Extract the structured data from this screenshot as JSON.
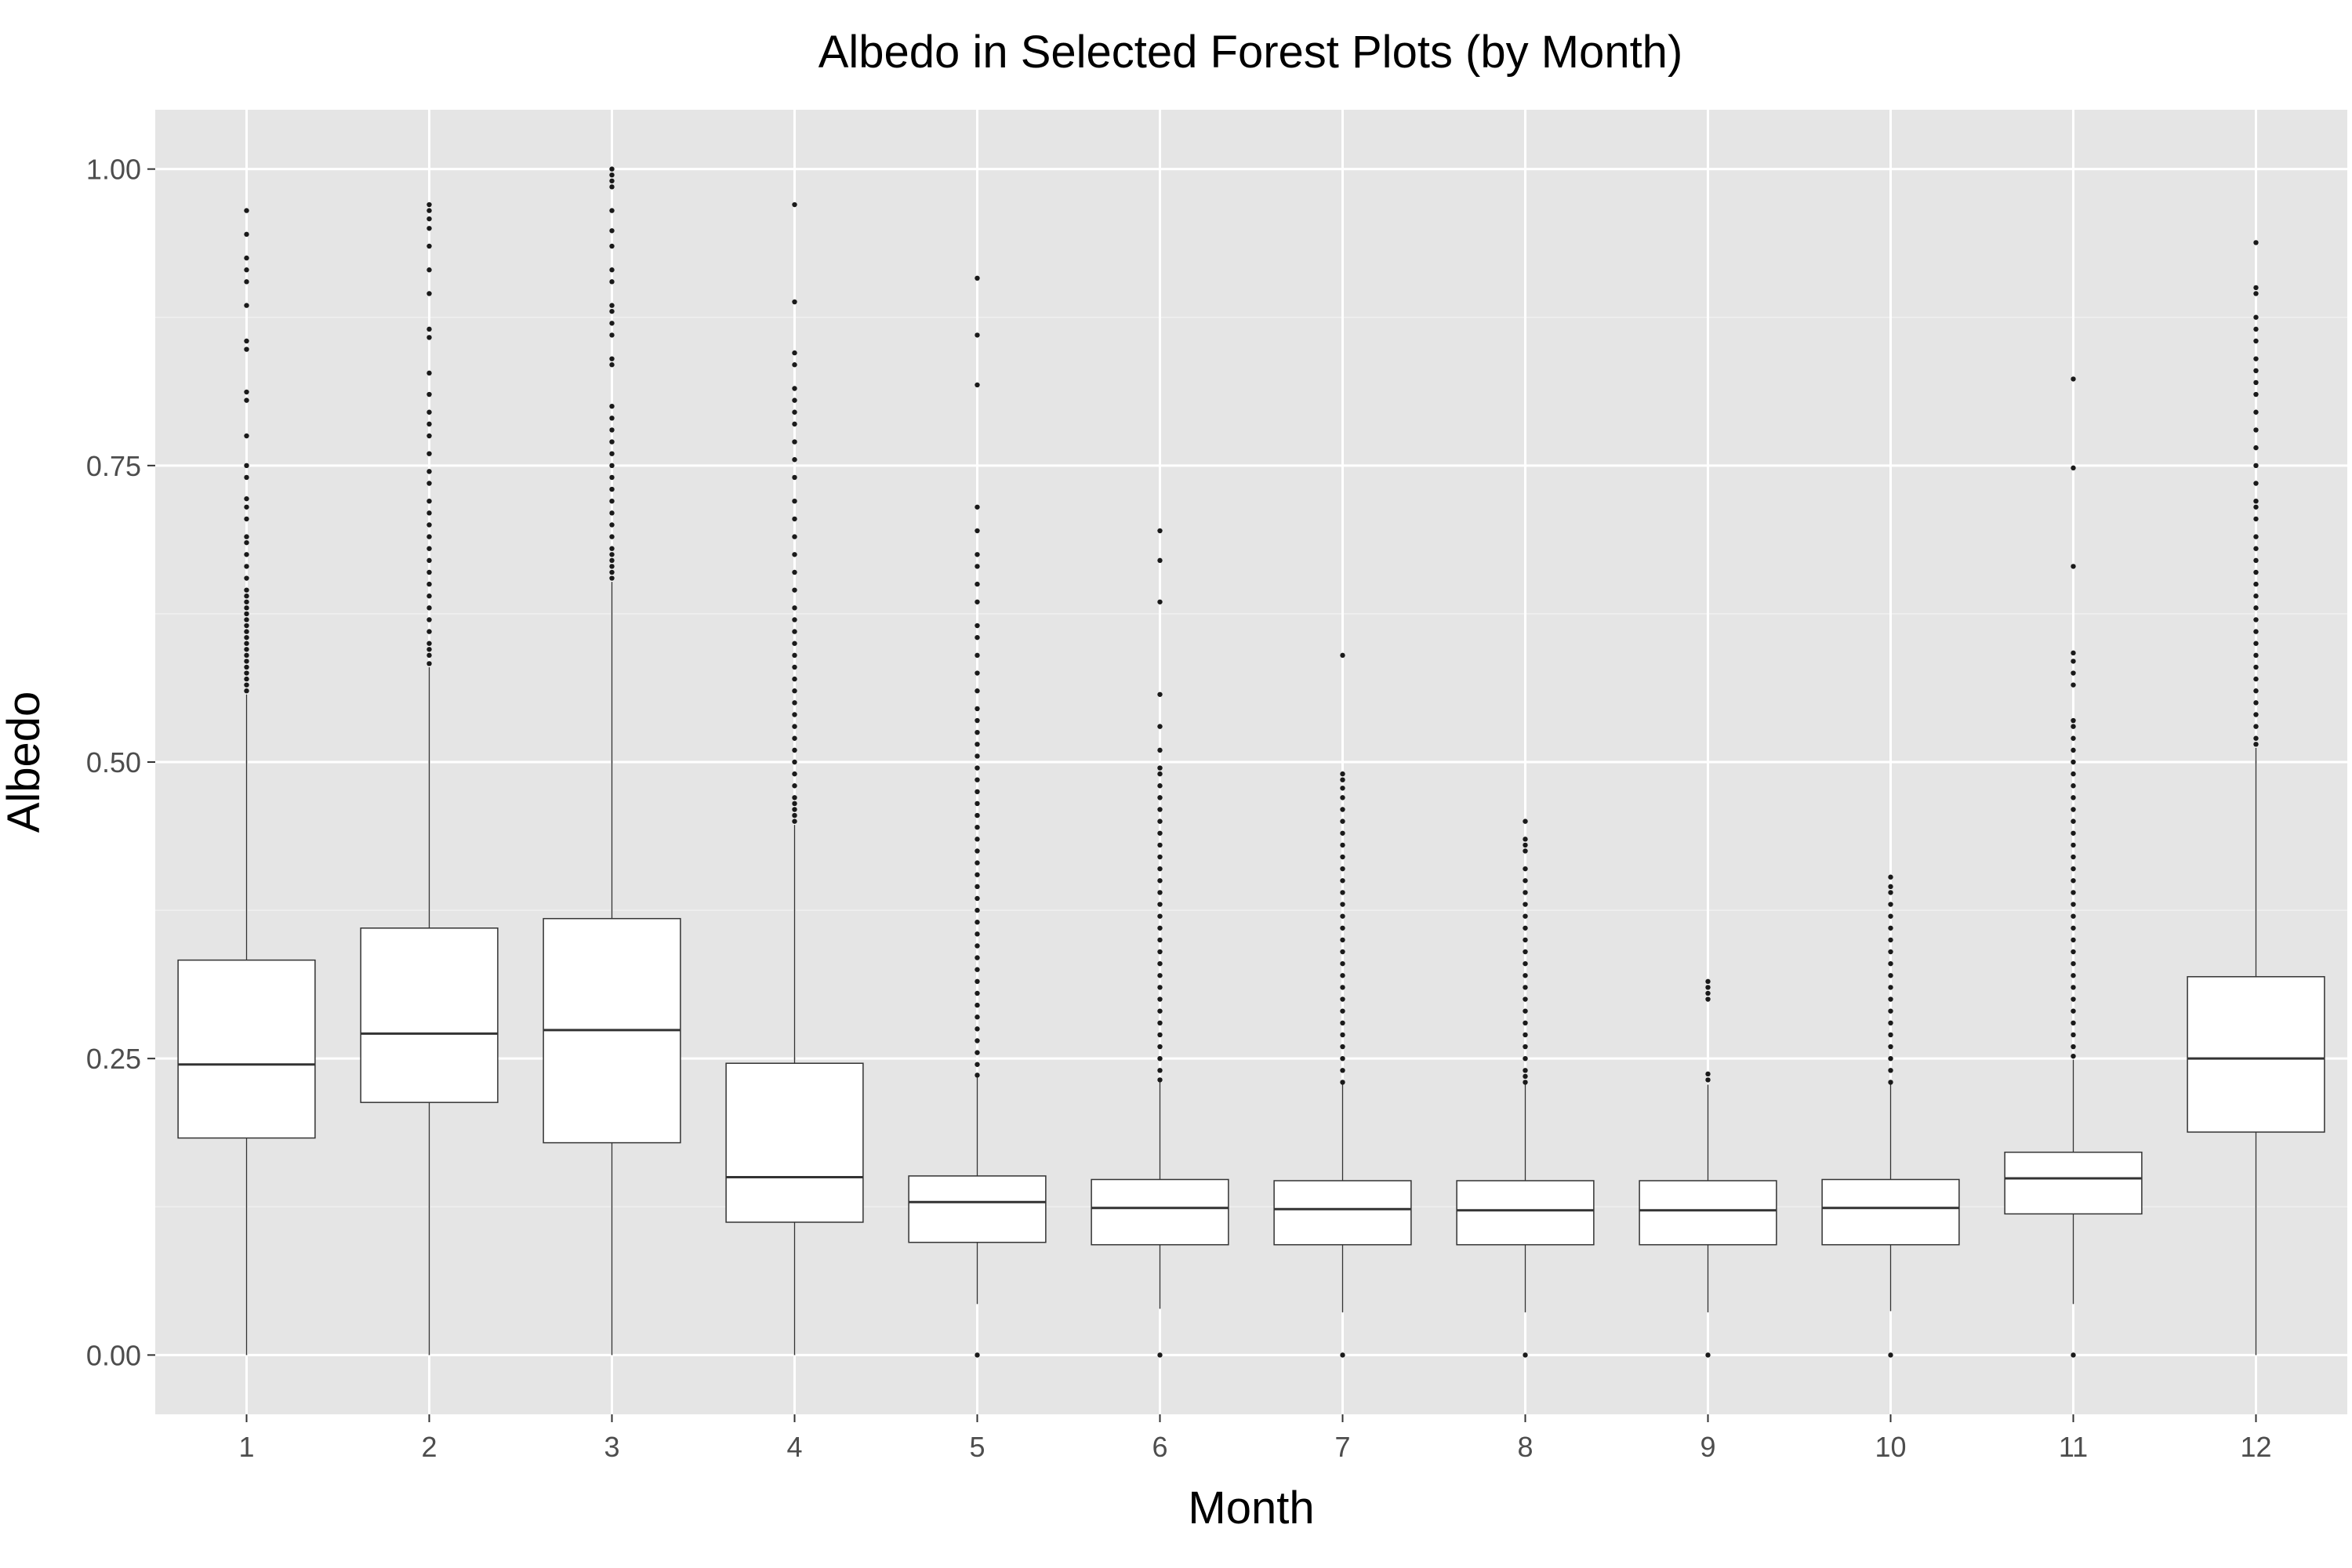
{
  "chart_data": {
    "type": "boxplot",
    "title": "Albedo in Selected Forest Plots (by Month)",
    "xlabel": "Month",
    "ylabel": "Albedo",
    "categories": [
      "1",
      "2",
      "3",
      "4",
      "5",
      "6",
      "7",
      "8",
      "9",
      "10",
      "11",
      "12"
    ],
    "ylim": [
      -0.05,
      1.05
    ],
    "yticks": [
      0.0,
      0.25,
      0.5,
      0.75,
      1.0
    ],
    "ytick_labels": [
      "0.00",
      "0.25",
      "0.50",
      "0.75",
      "1.00"
    ],
    "grid": true,
    "legend": "none",
    "colors": {
      "panel": "#e5e5e5",
      "grid_major": "#ffffff",
      "grid_minor": "#f0f0f0",
      "box_fill": "#ffffff",
      "box_stroke": "#333333",
      "outlier": "#1a1a1a",
      "tick_text": "#4d4d4d"
    },
    "boxes": [
      {
        "month": "1",
        "q1": 0.183,
        "median": 0.245,
        "q3": 0.333,
        "whisker_low": 0.0,
        "whisker_high": 0.557,
        "outliers": [
          0.56,
          0.565,
          0.57,
          0.575,
          0.58,
          0.585,
          0.59,
          0.595,
          0.6,
          0.605,
          0.61,
          0.615,
          0.62,
          0.625,
          0.63,
          0.635,
          0.64,
          0.645,
          0.655,
          0.665,
          0.675,
          0.685,
          0.69,
          0.705,
          0.715,
          0.722,
          0.74,
          0.75,
          0.775,
          0.805,
          0.812,
          0.848,
          0.855,
          0.885,
          0.905,
          0.915,
          0.925,
          0.945,
          0.965
        ]
      },
      {
        "month": "2",
        "q1": 0.213,
        "median": 0.271,
        "q3": 0.36,
        "whisker_low": 0.0,
        "whisker_high": 0.58,
        "outliers": [
          0.583,
          0.59,
          0.595,
          0.6,
          0.61,
          0.62,
          0.63,
          0.64,
          0.65,
          0.66,
          0.67,
          0.68,
          0.69,
          0.7,
          0.71,
          0.72,
          0.735,
          0.745,
          0.76,
          0.775,
          0.785,
          0.795,
          0.81,
          0.828,
          0.858,
          0.865,
          0.895,
          0.915,
          0.935,
          0.95,
          0.958,
          0.965,
          0.97
        ]
      },
      {
        "month": "3",
        "q1": 0.179,
        "median": 0.274,
        "q3": 0.368,
        "whisker_low": 0.0,
        "whisker_high": 0.652,
        "outliers": [
          0.655,
          0.66,
          0.665,
          0.67,
          0.675,
          0.68,
          0.69,
          0.7,
          0.71,
          0.72,
          0.73,
          0.74,
          0.75,
          0.76,
          0.77,
          0.78,
          0.79,
          0.8,
          0.835,
          0.84,
          0.86,
          0.87,
          0.88,
          0.885,
          0.905,
          0.915,
          0.935,
          0.948,
          0.965,
          0.985,
          0.99,
          0.995,
          1.0
        ]
      },
      {
        "month": "4",
        "q1": 0.112,
        "median": 0.15,
        "q3": 0.246,
        "whisker_low": 0.0,
        "whisker_high": 0.447,
        "outliers": [
          0.45,
          0.455,
          0.46,
          0.465,
          0.47,
          0.48,
          0.49,
          0.5,
          0.51,
          0.52,
          0.53,
          0.54,
          0.55,
          0.56,
          0.57,
          0.58,
          0.59,
          0.6,
          0.61,
          0.62,
          0.63,
          0.645,
          0.66,
          0.675,
          0.69,
          0.705,
          0.72,
          0.74,
          0.755,
          0.77,
          0.785,
          0.795,
          0.805,
          0.815,
          0.835,
          0.845,
          0.888,
          0.97
        ]
      },
      {
        "month": "5",
        "q1": 0.095,
        "median": 0.129,
        "q3": 0.151,
        "whisker_low": 0.043,
        "whisker_high": 0.234,
        "outliers": [
          0.0,
          0.236,
          0.245,
          0.255,
          0.265,
          0.275,
          0.285,
          0.295,
          0.305,
          0.315,
          0.325,
          0.335,
          0.345,
          0.355,
          0.365,
          0.375,
          0.385,
          0.395,
          0.405,
          0.415,
          0.425,
          0.435,
          0.445,
          0.455,
          0.465,
          0.475,
          0.485,
          0.495,
          0.505,
          0.515,
          0.525,
          0.535,
          0.545,
          0.56,
          0.575,
          0.59,
          0.605,
          0.615,
          0.635,
          0.65,
          0.665,
          0.675,
          0.695,
          0.715,
          0.818,
          0.86,
          0.908
        ]
      },
      {
        "month": "6",
        "q1": 0.093,
        "median": 0.124,
        "q3": 0.148,
        "whisker_low": 0.039,
        "whisker_high": 0.23,
        "outliers": [
          0.0,
          0.232,
          0.24,
          0.25,
          0.26,
          0.27,
          0.28,
          0.29,
          0.3,
          0.31,
          0.32,
          0.33,
          0.34,
          0.35,
          0.36,
          0.37,
          0.38,
          0.39,
          0.4,
          0.41,
          0.42,
          0.43,
          0.44,
          0.45,
          0.46,
          0.47,
          0.48,
          0.49,
          0.495,
          0.51,
          0.53,
          0.557,
          0.635,
          0.67,
          0.695
        ]
      },
      {
        "month": "7",
        "q1": 0.093,
        "median": 0.123,
        "q3": 0.147,
        "whisker_low": 0.036,
        "whisker_high": 0.228,
        "outliers": [
          0.0,
          0.23,
          0.24,
          0.25,
          0.26,
          0.27,
          0.28,
          0.29,
          0.3,
          0.31,
          0.32,
          0.33,
          0.34,
          0.35,
          0.36,
          0.37,
          0.38,
          0.39,
          0.4,
          0.41,
          0.42,
          0.43,
          0.44,
          0.45,
          0.46,
          0.47,
          0.478,
          0.485,
          0.49,
          0.59
        ]
      },
      {
        "month": "8",
        "q1": 0.093,
        "median": 0.122,
        "q3": 0.147,
        "whisker_low": 0.036,
        "whisker_high": 0.228,
        "outliers": [
          0.0,
          0.23,
          0.235,
          0.24,
          0.25,
          0.26,
          0.27,
          0.28,
          0.29,
          0.3,
          0.31,
          0.32,
          0.33,
          0.34,
          0.35,
          0.36,
          0.37,
          0.38,
          0.39,
          0.4,
          0.41,
          0.425,
          0.43,
          0.435,
          0.45
        ]
      },
      {
        "month": "9",
        "q1": 0.093,
        "median": 0.122,
        "q3": 0.147,
        "whisker_low": 0.036,
        "whisker_high": 0.228,
        "outliers": [
          0.0,
          0.232,
          0.237,
          0.3,
          0.305,
          0.31,
          0.315
        ]
      },
      {
        "month": "10",
        "q1": 0.093,
        "median": 0.124,
        "q3": 0.148,
        "whisker_low": 0.037,
        "whisker_high": 0.228,
        "outliers": [
          0.0,
          0.23,
          0.24,
          0.25,
          0.26,
          0.27,
          0.28,
          0.29,
          0.3,
          0.31,
          0.32,
          0.33,
          0.34,
          0.35,
          0.36,
          0.37,
          0.38,
          0.39,
          0.395,
          0.403
        ]
      },
      {
        "month": "11",
        "q1": 0.119,
        "median": 0.149,
        "q3": 0.171,
        "whisker_low": 0.043,
        "whisker_high": 0.249,
        "outliers": [
          0.0,
          0.252,
          0.26,
          0.27,
          0.28,
          0.29,
          0.3,
          0.31,
          0.32,
          0.33,
          0.34,
          0.35,
          0.36,
          0.37,
          0.38,
          0.39,
          0.4,
          0.41,
          0.42,
          0.43,
          0.44,
          0.45,
          0.46,
          0.47,
          0.48,
          0.49,
          0.5,
          0.51,
          0.52,
          0.53,
          0.535,
          0.565,
          0.575,
          0.585,
          0.592,
          0.665,
          0.748,
          0.823
        ]
      },
      {
        "month": "12",
        "q1": 0.188,
        "median": 0.25,
        "q3": 0.319,
        "whisker_low": 0.0,
        "whisker_high": 0.512,
        "outliers": [
          0.515,
          0.52,
          0.53,
          0.54,
          0.55,
          0.56,
          0.57,
          0.58,
          0.59,
          0.6,
          0.61,
          0.62,
          0.63,
          0.64,
          0.65,
          0.66,
          0.67,
          0.68,
          0.69,
          0.705,
          0.715,
          0.72,
          0.735,
          0.75,
          0.765,
          0.78,
          0.795,
          0.81,
          0.82,
          0.83,
          0.84,
          0.855,
          0.865,
          0.875,
          0.895,
          0.9,
          0.938
        ]
      }
    ]
  }
}
